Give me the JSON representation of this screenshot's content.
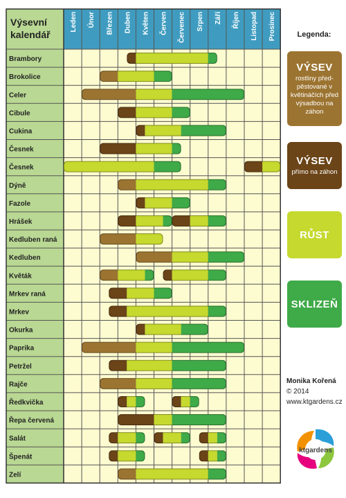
{
  "title_lines": [
    "Výsevní",
    "kalendář"
  ],
  "legend_title": "Legenda:",
  "legend": [
    {
      "key": "presow",
      "title": "VÝSEV",
      "subtitle": "rostliny před-pěstované v květináčích před výsadbou na záhon",
      "color": "#9c7431"
    },
    {
      "key": "sow",
      "title": "VÝSEV",
      "subtitle": "přímo na záhon",
      "color": "#6b4418"
    },
    {
      "key": "grow",
      "title": "RŮST",
      "subtitle": "",
      "color": "#c5d92e"
    },
    {
      "key": "harvest",
      "title": "SKLIZEŇ",
      "subtitle": "",
      "color": "#3faa48"
    }
  ],
  "author": {
    "name": "Monika Kořená",
    "year": "© 2014",
    "website": "www.ktgardens.cz"
  },
  "logo_text": "ktgardens",
  "colors": {
    "header": "#3f9cc0",
    "header_text": "#ffffff",
    "label_bg": "#b9d893",
    "cell_bg": "#fdfbd0",
    "grid": "#555555"
  },
  "chart_data": {
    "type": "table",
    "months": [
      "Leden",
      "Únor",
      "Březen",
      "Duben",
      "Květen",
      "Červen",
      "Červenec",
      "Srpen",
      "Září",
      "Říjen",
      "Listopad",
      "Prosinec"
    ],
    "rows": [
      {
        "name": "Brambory",
        "segments": [
          [
            [
              3.5,
              4.0,
              "sow"
            ],
            [
              4.0,
              8.0,
              "grow"
            ],
            [
              8.0,
              8.5,
              "harvest"
            ]
          ]
        ]
      },
      {
        "name": "Brokolice",
        "segments": [
          [
            [
              2.0,
              3.0,
              "presow"
            ],
            [
              3.0,
              5.0,
              "grow"
            ],
            [
              5.0,
              6.0,
              "harvest"
            ]
          ]
        ]
      },
      {
        "name": "Celer",
        "segments": [
          [
            [
              1.0,
              4.0,
              "presow"
            ],
            [
              4.0,
              6.0,
              "grow"
            ],
            [
              6.0,
              10.0,
              "harvest"
            ]
          ]
        ]
      },
      {
        "name": "Cibule",
        "segments": [
          [
            [
              3.0,
              4.0,
              "sow"
            ],
            [
              4.0,
              6.0,
              "grow"
            ],
            [
              6.0,
              7.0,
              "harvest"
            ]
          ]
        ]
      },
      {
        "name": "Cukina",
        "segments": [
          [
            [
              4.0,
              4.5,
              "sow"
            ],
            [
              4.5,
              6.5,
              "grow"
            ],
            [
              6.5,
              9.0,
              "harvest"
            ]
          ]
        ]
      },
      {
        "name": "Česnek",
        "segments": [
          [
            [
              2.0,
              4.0,
              "sow"
            ],
            [
              4.0,
              6.0,
              "grow"
            ],
            [
              6.0,
              6.5,
              "harvest"
            ]
          ]
        ]
      },
      {
        "name": "Česnek",
        "segments": [
          [
            [
              0.0,
              5.0,
              "grow"
            ],
            [
              5.0,
              6.5,
              "harvest"
            ]
          ],
          [
            [
              10.0,
              11.0,
              "sow"
            ],
            [
              11.0,
              12.0,
              "grow"
            ]
          ]
        ]
      },
      {
        "name": "Dýně",
        "segments": [
          [
            [
              3.0,
              4.0,
              "presow"
            ],
            [
              4.0,
              8.0,
              "grow"
            ],
            [
              8.0,
              9.0,
              "harvest"
            ]
          ]
        ]
      },
      {
        "name": "Fazole",
        "segments": [
          [
            [
              4.0,
              4.5,
              "sow"
            ],
            [
              4.5,
              6.0,
              "grow"
            ],
            [
              6.0,
              7.0,
              "harvest"
            ]
          ]
        ]
      },
      {
        "name": "Hrášek",
        "segments": [
          [
            [
              3.0,
              4.0,
              "sow"
            ],
            [
              4.0,
              5.5,
              "grow"
            ],
            [
              5.5,
              6.0,
              "harvest"
            ]
          ],
          [
            [
              6.0,
              7.0,
              "sow"
            ],
            [
              7.0,
              8.0,
              "grow"
            ],
            [
              8.0,
              9.0,
              "harvest"
            ]
          ]
        ]
      },
      {
        "name": "Kedluben raná",
        "segments": [
          [
            [
              2.0,
              4.0,
              "presow"
            ],
            [
              4.0,
              5.5,
              "grow"
            ]
          ]
        ]
      },
      {
        "name": "Kedluben",
        "segments": [
          [
            [
              4.0,
              6.0,
              "presow"
            ],
            [
              6.0,
              8.0,
              "grow"
            ],
            [
              8.0,
              10.0,
              "harvest"
            ]
          ]
        ]
      },
      {
        "name": "Květák",
        "segments": [
          [
            [
              2.0,
              3.0,
              "presow"
            ],
            [
              3.0,
              4.5,
              "grow"
            ],
            [
              4.5,
              5.0,
              "harvest"
            ]
          ],
          [
            [
              5.5,
              6.0,
              "sow"
            ],
            [
              6.0,
              8.0,
              "grow"
            ],
            [
              8.0,
              9.0,
              "harvest"
            ]
          ]
        ]
      },
      {
        "name": "Mrkev raná",
        "segments": [
          [
            [
              2.5,
              3.5,
              "sow"
            ],
            [
              3.5,
              5.0,
              "grow"
            ],
            [
              5.0,
              6.0,
              "harvest"
            ]
          ]
        ]
      },
      {
        "name": "Mrkev",
        "segments": [
          [
            [
              2.5,
              3.5,
              "sow"
            ],
            [
              3.5,
              8.0,
              "grow"
            ],
            [
              8.0,
              9.0,
              "harvest"
            ]
          ]
        ]
      },
      {
        "name": "Okurka",
        "segments": [
          [
            [
              4.0,
              4.5,
              "sow"
            ],
            [
              4.5,
              6.5,
              "grow"
            ],
            [
              6.5,
              8.0,
              "harvest"
            ]
          ]
        ]
      },
      {
        "name": "Paprika",
        "segments": [
          [
            [
              1.0,
              4.0,
              "presow"
            ],
            [
              4.0,
              6.0,
              "grow"
            ],
            [
              6.0,
              10.0,
              "harvest"
            ]
          ]
        ]
      },
      {
        "name": "Petržel",
        "segments": [
          [
            [
              2.5,
              3.5,
              "sow"
            ],
            [
              3.5,
              6.0,
              "grow"
            ],
            [
              6.0,
              9.0,
              "harvest"
            ]
          ]
        ]
      },
      {
        "name": "Rajče",
        "segments": [
          [
            [
              2.0,
              4.0,
              "presow"
            ],
            [
              4.0,
              6.0,
              "grow"
            ],
            [
              6.0,
              9.0,
              "harvest"
            ]
          ]
        ]
      },
      {
        "name": "Ředkvička",
        "segments": [
          [
            [
              3.0,
              3.5,
              "sow"
            ],
            [
              3.5,
              4.0,
              "grow"
            ],
            [
              4.0,
              4.5,
              "harvest"
            ]
          ],
          [
            [
              6.0,
              6.5,
              "sow"
            ],
            [
              6.5,
              7.0,
              "grow"
            ],
            [
              7.0,
              7.5,
              "harvest"
            ]
          ]
        ]
      },
      {
        "name": "Řepa červená",
        "segments": [
          [
            [
              3.0,
              5.0,
              "sow"
            ],
            [
              5.0,
              6.0,
              "grow"
            ],
            [
              6.0,
              9.0,
              "harvest"
            ]
          ]
        ]
      },
      {
        "name": "Salát",
        "segments": [
          [
            [
              2.5,
              3.0,
              "sow"
            ],
            [
              3.0,
              4.0,
              "grow"
            ],
            [
              4.0,
              4.5,
              "harvest"
            ]
          ],
          [
            [
              5.0,
              5.5,
              "sow"
            ],
            [
              5.5,
              6.5,
              "grow"
            ],
            [
              6.5,
              7.0,
              "harvest"
            ]
          ],
          [
            [
              7.5,
              8.0,
              "sow"
            ],
            [
              8.0,
              8.5,
              "grow"
            ],
            [
              8.5,
              9.0,
              "harvest"
            ]
          ]
        ]
      },
      {
        "name": "Špenát",
        "segments": [
          [
            [
              2.5,
              3.0,
              "sow"
            ],
            [
              3.0,
              4.0,
              "grow"
            ],
            [
              4.0,
              4.5,
              "harvest"
            ]
          ],
          [
            [
              7.5,
              8.0,
              "sow"
            ],
            [
              8.0,
              8.5,
              "grow"
            ],
            [
              8.5,
              9.0,
              "harvest"
            ]
          ]
        ]
      },
      {
        "name": "Zelí",
        "segments": [
          [
            [
              3.0,
              4.0,
              "presow"
            ],
            [
              4.0,
              8.0,
              "grow"
            ],
            [
              8.0,
              9.0,
              "harvest"
            ]
          ]
        ]
      }
    ]
  }
}
